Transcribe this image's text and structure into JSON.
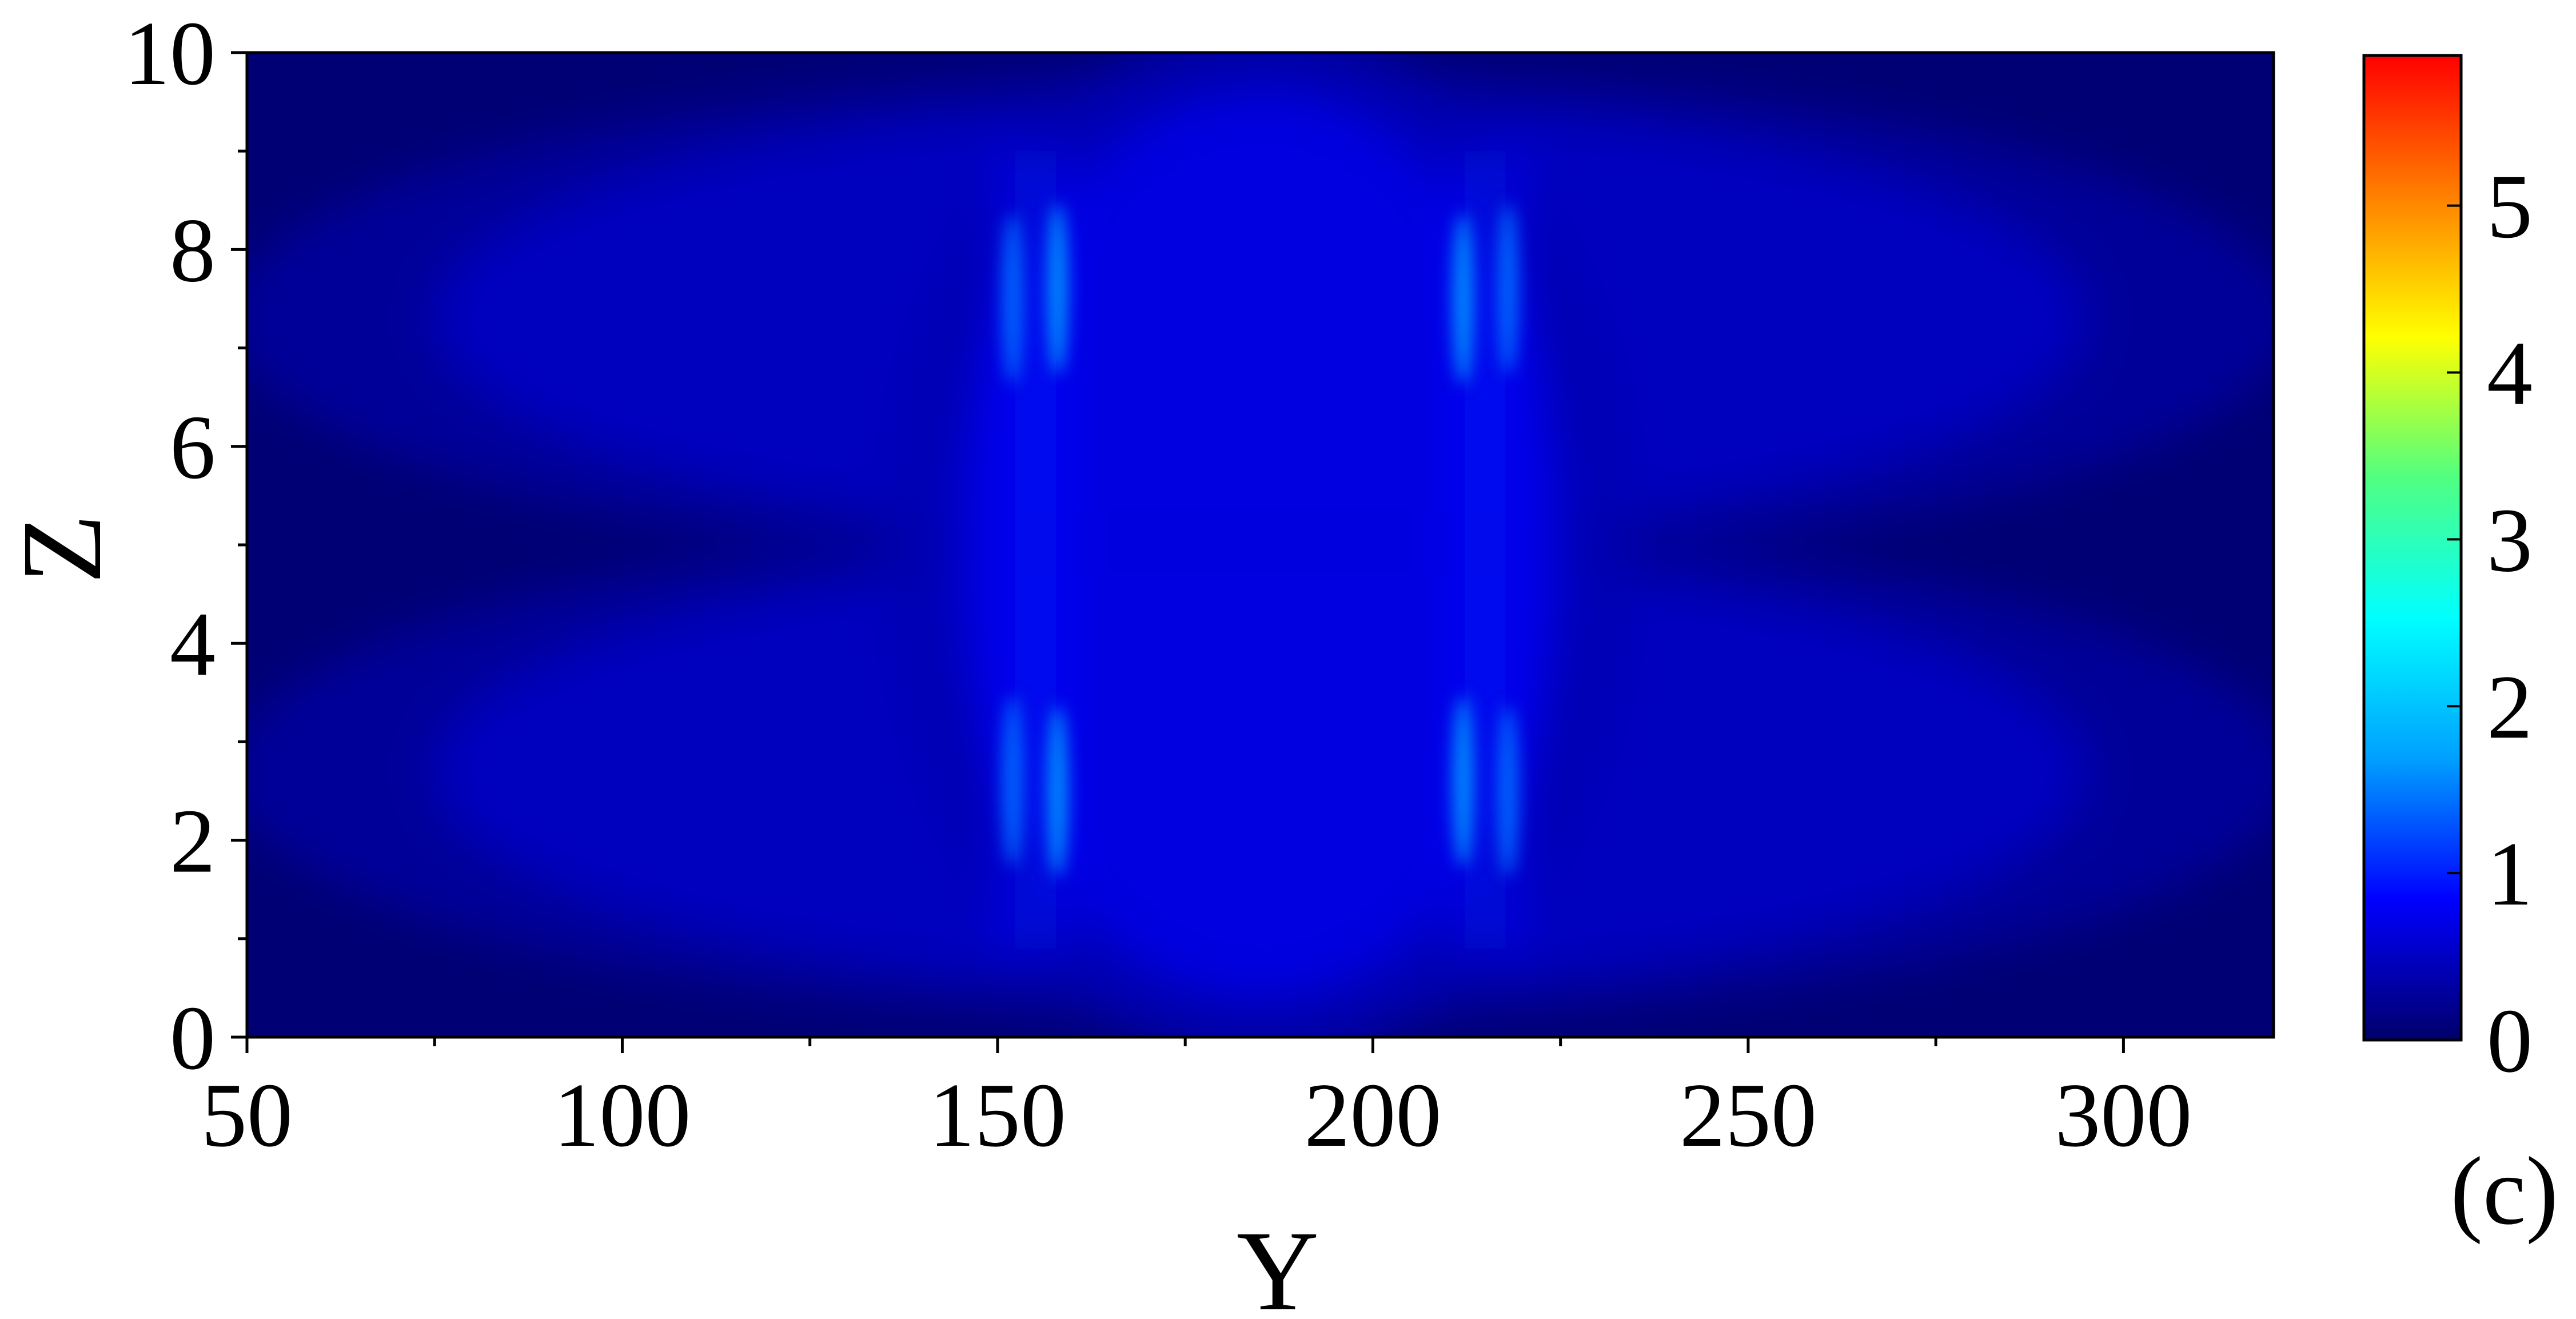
{
  "chart_data": {
    "type": "heatmap",
    "xlabel": "Y",
    "ylabel": "Z",
    "panel_label": "(c)",
    "xlim": [
      50,
      320
    ],
    "ylim": [
      0,
      10
    ],
    "x_ticks": [
      50,
      100,
      150,
      200,
      250,
      300
    ],
    "x_minor_ticks": [
      75,
      125,
      175,
      225,
      275
    ],
    "y_ticks": [
      0,
      2,
      4,
      6,
      8,
      10
    ],
    "y_minor_ticks": [
      1,
      3,
      5,
      7,
      9
    ],
    "colorbar": {
      "min": 0,
      "max": 5.9,
      "ticks": [
        0,
        1,
        2,
        3,
        4,
        5
      ],
      "colors": [
        "#00006b",
        "#0000ff",
        "#00a0ff",
        "#00ffff",
        "#50ff80",
        "#ffff00",
        "#ff8000",
        "#ff0000"
      ]
    },
    "hot_spots": [
      {
        "y": 152,
        "z": 7.5,
        "value": 1.4
      },
      {
        "y": 158,
        "z": 7.6,
        "value": 1.6
      },
      {
        "y": 212,
        "z": 7.5,
        "value": 1.6
      },
      {
        "y": 218,
        "z": 7.6,
        "value": 1.4
      },
      {
        "y": 152,
        "z": 2.6,
        "value": 1.4
      },
      {
        "y": 158,
        "z": 2.5,
        "value": 1.6
      },
      {
        "y": 212,
        "z": 2.6,
        "value": 1.6
      },
      {
        "y": 218,
        "z": 2.5,
        "value": 1.4
      }
    ],
    "field_regions": [
      {
        "y_center": 185,
        "z_center": 7.3,
        "y_halfwidth": 110,
        "z_halfwidth": 2.2,
        "value": 0.55
      },
      {
        "y_center": 185,
        "z_center": 2.7,
        "y_halfwidth": 110,
        "z_halfwidth": 2.2,
        "value": 0.55
      },
      {
        "y_center": 185,
        "z_center": 5.0,
        "y_halfwidth": 40,
        "z_halfwidth": 4.6,
        "value": 0.75
      }
    ]
  }
}
